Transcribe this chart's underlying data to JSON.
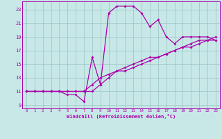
{
  "xlabel": "Windchill (Refroidissement éolien,°C)",
  "bg_color": "#c8e8e8",
  "grid_color": "#a0c8c8",
  "line_color": "#aa00aa",
  "xlim": [
    -0.5,
    23.5
  ],
  "ylim": [
    8.5,
    24.2
  ],
  "xticks": [
    0,
    1,
    2,
    3,
    4,
    5,
    6,
    7,
    8,
    9,
    10,
    11,
    12,
    13,
    14,
    15,
    16,
    17,
    18,
    19,
    20,
    21,
    22,
    23
  ],
  "yticks": [
    9,
    11,
    13,
    15,
    17,
    19,
    21,
    23
  ],
  "curve1_x": [
    0,
    1,
    2,
    3,
    4,
    5,
    6,
    7,
    8,
    9,
    10,
    11,
    12,
    13,
    14,
    15,
    16,
    17,
    18,
    19,
    20,
    21,
    22,
    23
  ],
  "curve1_y": [
    11,
    11,
    11,
    11,
    11,
    10.5,
    10.5,
    9.5,
    16,
    12,
    22.5,
    23.5,
    23.5,
    23.5,
    22.5,
    20.5,
    21.5,
    19,
    18,
    19,
    19,
    19,
    19,
    18.5
  ],
  "curve2_x": [
    0,
    1,
    2,
    3,
    4,
    5,
    6,
    7,
    8,
    9,
    10,
    11,
    12,
    13,
    14,
    15,
    16,
    17,
    18,
    19,
    20,
    21,
    22,
    23
  ],
  "curve2_y": [
    11,
    11,
    11,
    11,
    11,
    11,
    11,
    11,
    11,
    12,
    13,
    14,
    14,
    14.5,
    15,
    15.5,
    16,
    16.5,
    17,
    17.5,
    18,
    18.5,
    18.5,
    19
  ],
  "curve3_x": [
    0,
    1,
    2,
    3,
    4,
    5,
    6,
    7,
    8,
    9,
    10,
    11,
    12,
    13,
    14,
    15,
    16,
    17,
    18,
    19,
    20,
    21,
    22,
    23
  ],
  "curve3_y": [
    11,
    11,
    11,
    11,
    11,
    11,
    11,
    11,
    12,
    13,
    13.5,
    14,
    14.5,
    15,
    15.5,
    16,
    16,
    16.5,
    17,
    17.5,
    17.5,
    18,
    18.5,
    18.5
  ]
}
